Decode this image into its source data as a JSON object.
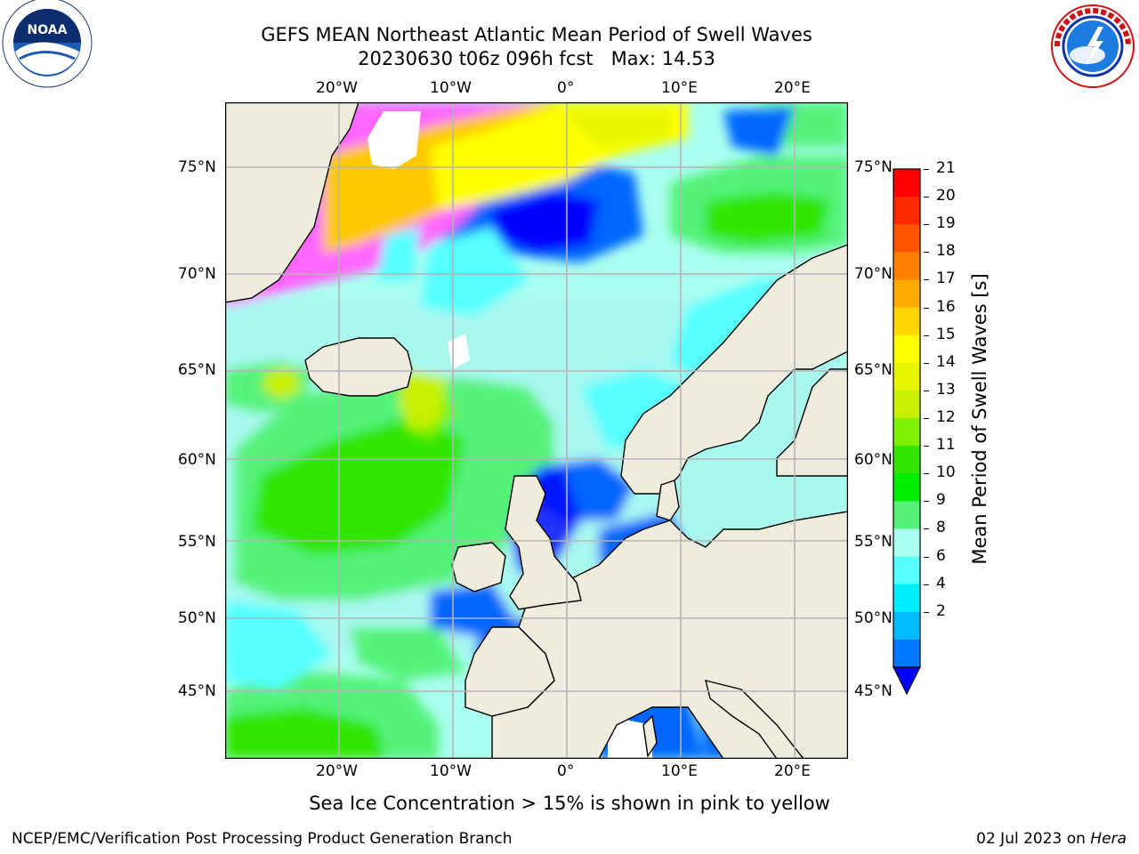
{
  "title": {
    "line1": "GEFS MEAN Northeast Atlantic Mean Period of Swell Waves",
    "line2": "20230630 t06z 096h fcst   Max: 14.53"
  },
  "logos": {
    "noaa": {
      "icon": "noaa-logo",
      "text": "NOAA",
      "ring_text": "NATIONAL OCEANIC AND ATMOSPHERIC ADMINISTRATION · U.S. DEPARTMENT OF COMMERCE"
    },
    "nws": {
      "icon": "nws-logo",
      "ring_text": "NATIONAL WEATHER SERVICE"
    }
  },
  "map": {
    "lon_ticks_top": [
      "20°W",
      "10°W",
      "0°",
      "10°E",
      "20°E"
    ],
    "lon_ticks_bottom": [
      "20°W",
      "10°W",
      "0°",
      "10°E",
      "20°E"
    ],
    "lat_ticks_left": [
      "75°N",
      "70°N",
      "65°N",
      "60°N",
      "55°N",
      "50°N",
      "45°N"
    ],
    "lat_ticks_right": [
      "75°N",
      "70°N",
      "65°N",
      "60°N",
      "55°N",
      "50°N",
      "45°N"
    ],
    "colors": {
      "land": "#eeecdd",
      "grid": "#b4b4b4",
      "coast": "#000000"
    }
  },
  "colorbar": {
    "label": "Mean Period of Swell Waves [s]",
    "ticks": [
      "21",
      "20",
      "19",
      "18",
      "17",
      "16",
      "15",
      "14",
      "13",
      "12",
      "11",
      "10",
      "9",
      "8",
      "6",
      "4",
      "2"
    ],
    "colors_top_to_bottom": [
      "#ff0000",
      "#ff2a00",
      "#ff5500",
      "#ff8000",
      "#ffaa00",
      "#ffd400",
      "#ffff00",
      "#e6f500",
      "#c8f000",
      "#7ff000",
      "#33e600",
      "#00ee00",
      "#55f27a",
      "#aafff0",
      "#55ffff",
      "#00eeff",
      "#00bbff",
      "#0077ff"
    ],
    "extend_color": "#0000ff"
  },
  "caption": "Sea Ice Concentration > 15% is shown in pink to yellow",
  "footer": {
    "left": "NCEP/EMC/Verification Post Processing Product Generation Branch",
    "right_date": "02 Jul 2023 on ",
    "right_host": "Hera"
  }
}
